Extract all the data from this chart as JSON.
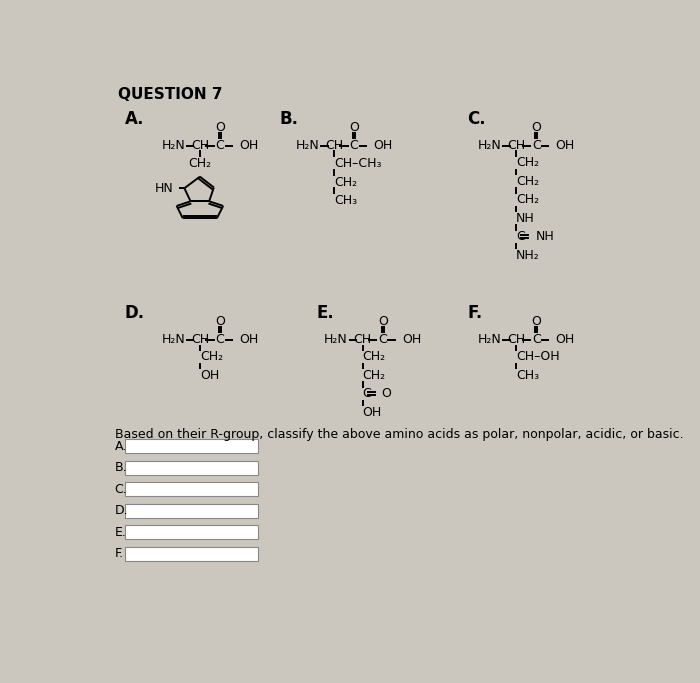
{
  "title": "QUESTION 7",
  "bg": "#cbc7bf",
  "bottom_text": "Based on their R-group, classify the above amino acids as polar, nonpolar, acidic, or basic.",
  "answer_labels": [
    "A.",
    "B.",
    "C.",
    "D.",
    "E.",
    "F."
  ]
}
